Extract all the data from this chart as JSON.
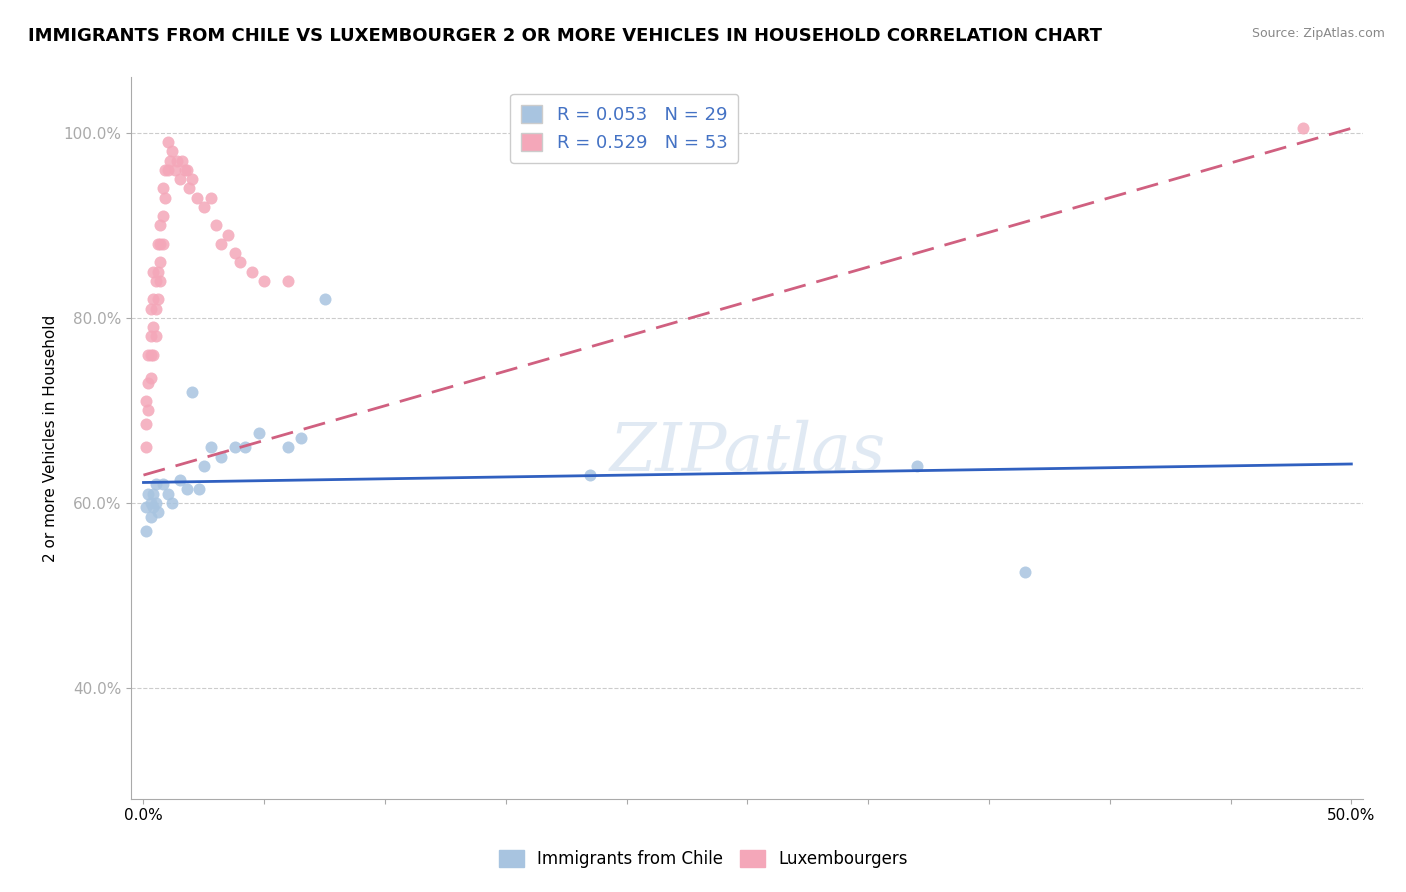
{
  "title": "IMMIGRANTS FROM CHILE VS LUXEMBOURGER 2 OR MORE VEHICLES IN HOUSEHOLD CORRELATION CHART",
  "source": "Source: ZipAtlas.com",
  "ylabel": "2 or more Vehicles in Household",
  "xlim": [
    -0.005,
    0.505
  ],
  "ylim": [
    0.28,
    1.06
  ],
  "xticks": [
    0.0,
    0.05,
    0.1,
    0.15,
    0.2,
    0.25,
    0.3,
    0.35,
    0.4,
    0.45,
    0.5
  ],
  "xticklabels": [
    "0.0%",
    "",
    "",
    "",
    "",
    "",
    "",
    "",
    "",
    "",
    "50.0%"
  ],
  "yticks": [
    0.4,
    0.6,
    0.8,
    1.0
  ],
  "yticklabels": [
    "40.0%",
    "60.0%",
    "80.0%",
    "100.0%"
  ],
  "watermark": "ZIPatlas",
  "chile_color": "#a8c4e0",
  "lux_color": "#f4a7b9",
  "chile_line_color": "#3060c0",
  "lux_line_color": "#d06080",
  "grid_color": "#cccccc",
  "background_color": "#ffffff",
  "title_fontsize": 13,
  "axis_label_fontsize": 11,
  "tick_fontsize": 11,
  "legend_fontsize": 13,
  "r_n_color": "#4472c4",
  "marker_size": 75,
  "chile_R": 0.053,
  "chile_N": 29,
  "lux_R": 0.529,
  "lux_N": 53,
  "chile_label": "Immigrants from Chile",
  "lux_label": "Luxembourgers",
  "chile_x": [
    0.001,
    0.001,
    0.002,
    0.003,
    0.003,
    0.004,
    0.004,
    0.005,
    0.005,
    0.006,
    0.008,
    0.01,
    0.012,
    0.015,
    0.018,
    0.02,
    0.023,
    0.025,
    0.028,
    0.032,
    0.038,
    0.042,
    0.048,
    0.06,
    0.065,
    0.075,
    0.185,
    0.32,
    0.365
  ],
  "chile_y": [
    0.595,
    0.57,
    0.61,
    0.6,
    0.585,
    0.61,
    0.595,
    0.62,
    0.6,
    0.59,
    0.62,
    0.61,
    0.6,
    0.625,
    0.615,
    0.72,
    0.615,
    0.64,
    0.66,
    0.65,
    0.66,
    0.66,
    0.675,
    0.66,
    0.67,
    0.82,
    0.63,
    0.64,
    0.525
  ],
  "lux_x": [
    0.001,
    0.001,
    0.001,
    0.002,
    0.002,
    0.002,
    0.003,
    0.003,
    0.003,
    0.003,
    0.004,
    0.004,
    0.004,
    0.004,
    0.005,
    0.005,
    0.005,
    0.006,
    0.006,
    0.006,
    0.007,
    0.007,
    0.007,
    0.007,
    0.008,
    0.008,
    0.008,
    0.009,
    0.009,
    0.01,
    0.01,
    0.011,
    0.012,
    0.013,
    0.014,
    0.015,
    0.016,
    0.017,
    0.018,
    0.019,
    0.02,
    0.022,
    0.025,
    0.028,
    0.03,
    0.032,
    0.035,
    0.038,
    0.04,
    0.045,
    0.05,
    0.06,
    0.48
  ],
  "lux_y": [
    0.71,
    0.685,
    0.66,
    0.76,
    0.73,
    0.7,
    0.81,
    0.78,
    0.76,
    0.735,
    0.85,
    0.82,
    0.79,
    0.76,
    0.84,
    0.81,
    0.78,
    0.88,
    0.85,
    0.82,
    0.9,
    0.88,
    0.86,
    0.84,
    0.94,
    0.91,
    0.88,
    0.96,
    0.93,
    0.99,
    0.96,
    0.97,
    0.98,
    0.96,
    0.97,
    0.95,
    0.97,
    0.96,
    0.96,
    0.94,
    0.95,
    0.93,
    0.92,
    0.93,
    0.9,
    0.88,
    0.89,
    0.87,
    0.86,
    0.85,
    0.84,
    0.84,
    1.005
  ],
  "chile_line_x0": 0.0,
  "chile_line_y0": 0.622,
  "chile_line_x1": 0.5,
  "chile_line_y1": 0.642,
  "lux_line_x0": 0.0,
  "lux_line_y0": 0.63,
  "lux_line_x1": 0.5,
  "lux_line_y1": 1.005
}
